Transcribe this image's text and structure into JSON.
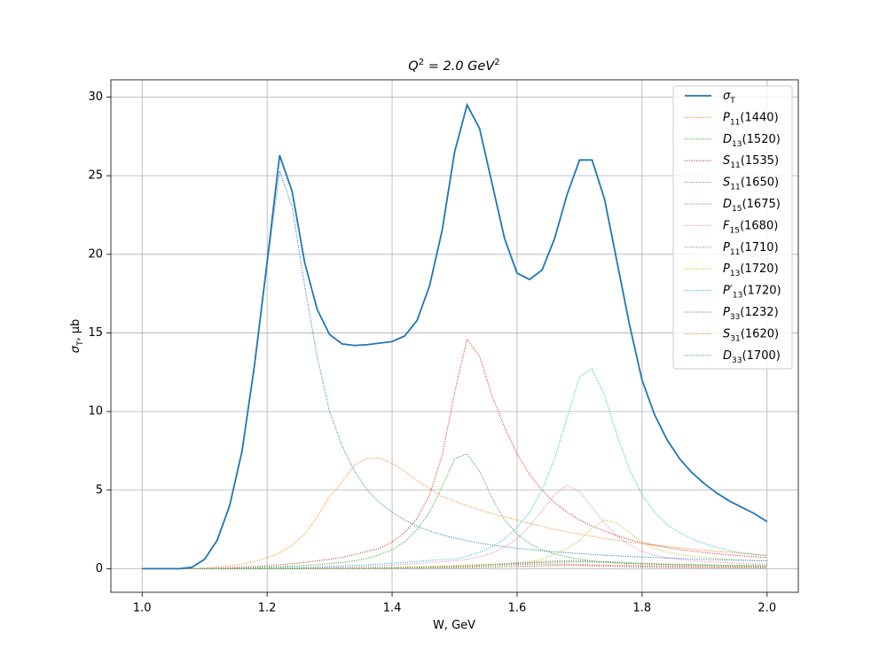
{
  "chart_data": {
    "type": "line",
    "title": "Q^2 = 2.0 GeV^2",
    "xlabel": "W, GeV",
    "ylabel": "σ_T, μb",
    "x": [
      1,
      1.02,
      1.04,
      1.06,
      1.08,
      1.1,
      1.12,
      1.14,
      1.16,
      1.18,
      1.2,
      1.22,
      1.24,
      1.26,
      1.28,
      1.3,
      1.32,
      1.34,
      1.36,
      1.38,
      1.4,
      1.42,
      1.44,
      1.46,
      1.48,
      1.5,
      1.52,
      1.54,
      1.56,
      1.58,
      1.6,
      1.62,
      1.64,
      1.66,
      1.68,
      1.7,
      1.72,
      1.74,
      1.76,
      1.78,
      1.8,
      1.82,
      1.84,
      1.86,
      1.88,
      1.9,
      1.92,
      1.94,
      1.96,
      1.98,
      2
    ],
    "xlim": [
      0.95,
      2.05
    ],
    "ylim": [
      -1.5,
      31.1
    ],
    "xticks": [
      {
        "value": 1,
        "label": "1.0"
      },
      1.2,
      1.4,
      1.6,
      1.8,
      {
        "value": 2,
        "label": "2.0"
      }
    ],
    "yticks": [
      0,
      5,
      10,
      15,
      20,
      25,
      30
    ],
    "grid": true,
    "legend": "upper right",
    "series": [
      {
        "name": "σ_T",
        "color": "#1f77b4",
        "style": "solid",
        "values": [
          0,
          0,
          0,
          0,
          0.1,
          0.6,
          1.8,
          4,
          7.5,
          13,
          19.5,
          26.3,
          24,
          19.5,
          16.5,
          14.9,
          14.3,
          14.2,
          14.25,
          14.35,
          14.45,
          14.8,
          15.8,
          18,
          21.5,
          26.5,
          29.5,
          28,
          24.5,
          21,
          18.8,
          18.4,
          19,
          21,
          23.8,
          26,
          26,
          23.5,
          19.5,
          15.5,
          12,
          9.8,
          8.2,
          7,
          6.1,
          5.4,
          4.8,
          4.3,
          3.9,
          3.5,
          3.0
        ]
      },
      {
        "name": "P_{11}(1440)",
        "color": "#ff7f0e",
        "style": "dotted",
        "values": [
          0,
          0,
          0,
          0,
          0.02,
          0.05,
          0.1,
          0.18,
          0.3,
          0.45,
          0.7,
          1.0,
          1.5,
          2.2,
          3.3,
          4.6,
          5.5,
          6.6,
          7.0,
          7.05,
          6.7,
          6.2,
          5.6,
          5.1,
          4.6,
          4.3,
          4.0,
          3.75,
          3.5,
          3.3,
          3.1,
          2.9,
          2.7,
          2.5,
          2.35,
          2.2,
          2.05,
          1.92,
          1.8,
          1.7,
          1.6,
          1.5,
          1.42,
          1.33,
          1.25,
          1.18,
          1.11,
          1.05,
          0.98,
          0.92,
          0.87
        ]
      },
      {
        "name": "D_{13}(1520)",
        "color": "#2ca02c",
        "style": "dotted",
        "values": [
          0,
          0,
          0,
          0,
          0,
          0.01,
          0.02,
          0.03,
          0.05,
          0.07,
          0.1,
          0.13,
          0.17,
          0.21,
          0.26,
          0.32,
          0.4,
          0.5,
          0.65,
          0.9,
          1.2,
          1.7,
          2.5,
          3.6,
          5.2,
          7.0,
          7.3,
          6.2,
          4.5,
          3.1,
          2.2,
          1.6,
          1.2,
          0.95,
          0.75,
          0.6,
          0.5,
          0.43,
          0.38,
          0.34,
          0.31,
          0.29,
          0.27,
          0.25,
          0.24,
          0.23,
          0.22,
          0.21,
          0.2,
          0.2,
          0.19
        ]
      },
      {
        "name": "S_{11}(1535)",
        "color": "#d62728",
        "style": "dotted",
        "values": [
          0,
          0,
          0,
          0,
          0.01,
          0.02,
          0.04,
          0.07,
          0.1,
          0.14,
          0.19,
          0.25,
          0.32,
          0.4,
          0.5,
          0.6,
          0.72,
          0.9,
          1.1,
          1.3,
          1.7,
          2.3,
          3.2,
          4.7,
          7.2,
          11.2,
          14.6,
          13.5,
          11,
          9,
          7.3,
          6,
          5,
          4.2,
          3.6,
          3.1,
          2.7,
          2.4,
          2.1,
          1.85,
          1.65,
          1.5,
          1.35,
          1.22,
          1.12,
          1.03,
          0.95,
          0.88,
          0.82,
          0.76,
          0.7
        ]
      },
      {
        "name": "S_{11}(1650)",
        "color": "#9467bd",
        "style": "dotted",
        "values": [
          0,
          0,
          0,
          0,
          0,
          0,
          0,
          0,
          0,
          0,
          0.01,
          0.01,
          0.01,
          0.02,
          0.02,
          0.02,
          0.03,
          0.03,
          0.04,
          0.04,
          0.05,
          0.06,
          0.07,
          0.08,
          0.1,
          0.12,
          0.14,
          0.17,
          0.2,
          0.23,
          0.26,
          0.28,
          0.29,
          0.3,
          0.29,
          0.27,
          0.25,
          0.23,
          0.21,
          0.19,
          0.17,
          0.16,
          0.15,
          0.14,
          0.13,
          0.12,
          0.11,
          0.1,
          0.1,
          0.09,
          0.09
        ]
      },
      {
        "name": "D_{15}(1675)",
        "color": "#8c564b",
        "style": "dotted",
        "values": [
          0,
          0,
          0,
          0,
          0,
          0,
          0,
          0,
          0,
          0,
          0,
          0,
          0,
          0,
          0.01,
          0.01,
          0.01,
          0.01,
          0.02,
          0.02,
          0.02,
          0.03,
          0.03,
          0.04,
          0.05,
          0.06,
          0.07,
          0.08,
          0.1,
          0.12,
          0.14,
          0.16,
          0.18,
          0.2,
          0.21,
          0.2,
          0.18,
          0.16,
          0.14,
          0.12,
          0.11,
          0.1,
          0.09,
          0.08,
          0.07,
          0.07,
          0.06,
          0.06,
          0.05,
          0.05,
          0.05
        ]
      },
      {
        "name": "F_{15}(1680)",
        "color": "#e377c2",
        "style": "dotted",
        "values": [
          0,
          0,
          0,
          0,
          0,
          0,
          0.01,
          0.01,
          0.02,
          0.02,
          0.03,
          0.04,
          0.05,
          0.06,
          0.08,
          0.1,
          0.12,
          0.14,
          0.17,
          0.2,
          0.24,
          0.28,
          0.33,
          0.4,
          0.45,
          0.5,
          0.6,
          0.75,
          1.0,
          1.4,
          1.9,
          2.7,
          3.7,
          4.7,
          5.3,
          4.9,
          3.9,
          2.9,
          2.1,
          1.5,
          1.1,
          0.85,
          0.7,
          0.6,
          0.52,
          0.46,
          0.41,
          0.37,
          0.34,
          0.31,
          0.29
        ]
      },
      {
        "name": "P_{11}(1710)",
        "color": "#7f7f7f",
        "style": "dotted",
        "values": [
          0,
          0,
          0,
          0,
          0,
          0,
          0,
          0,
          0,
          0,
          0.01,
          0.01,
          0.01,
          0.02,
          0.02,
          0.03,
          0.03,
          0.04,
          0.05,
          0.06,
          0.07,
          0.08,
          0.1,
          0.12,
          0.14,
          0.17,
          0.2,
          0.24,
          0.28,
          0.33,
          0.38,
          0.42,
          0.46,
          0.49,
          0.5,
          0.5,
          0.48,
          0.45,
          0.42,
          0.38,
          0.35,
          0.32,
          0.3,
          0.28,
          0.26,
          0.24,
          0.22,
          0.21,
          0.2,
          0.19,
          0.18
        ]
      },
      {
        "name": "P_{13}(1720)",
        "color": "#bcbd22",
        "style": "dotted",
        "values": [
          0,
          0,
          0,
          0,
          0,
          0,
          0,
          0,
          0,
          0,
          0.01,
          0.01,
          0.01,
          0.02,
          0.02,
          0.02,
          0.03,
          0.03,
          0.04,
          0.04,
          0.05,
          0.06,
          0.07,
          0.08,
          0.09,
          0.11,
          0.13,
          0.16,
          0.2,
          0.25,
          0.3,
          0.45,
          0.6,
          0.9,
          1.3,
          1.8,
          2.6,
          3.1,
          2.9,
          2.3,
          1.7,
          1.3,
          1.05,
          0.9,
          0.8,
          0.72,
          0.65,
          0.6,
          0.56,
          0.52,
          0.5
        ]
      },
      {
        "name": "P′_{13}(1720)",
        "color": "#17becf",
        "style": "dotted",
        "values": [
          0,
          0,
          0,
          0,
          0,
          0,
          0.01,
          0.02,
          0.03,
          0.04,
          0.05,
          0.06,
          0.08,
          0.1,
          0.12,
          0.15,
          0.18,
          0.21,
          0.25,
          0.3,
          0.35,
          0.4,
          0.46,
          0.53,
          0.58,
          0.6,
          0.8,
          1.05,
          1.4,
          1.9,
          2.6,
          3.6,
          5.0,
          7.0,
          9.6,
          12.2,
          12.7,
          11,
          8.5,
          6.3,
          4.7,
          3.6,
          2.8,
          2.3,
          1.9,
          1.6,
          1.35,
          1.15,
          1.0,
          0.9,
          0.8
        ]
      },
      {
        "name": "P_{33}(1232)",
        "color": "#1f77b4",
        "style": "dotted",
        "values": [
          0,
          0,
          0,
          0,
          0.1,
          0.6,
          1.8,
          4,
          7.5,
          13,
          19.3,
          25.3,
          23,
          18,
          13.5,
          10,
          7.8,
          6.2,
          5.0,
          4.2,
          3.6,
          3.1,
          2.7,
          2.4,
          2.15,
          1.95,
          1.78,
          1.63,
          1.5,
          1.4,
          1.3,
          1.22,
          1.15,
          1.08,
          1.02,
          0.96,
          0.91,
          0.86,
          0.82,
          0.78,
          0.74,
          0.71,
          0.68,
          0.65,
          0.62,
          0.6,
          0.57,
          0.55,
          0.53,
          0.51,
          0.5
        ]
      },
      {
        "name": "S_{31}(1620)",
        "color": "#ff7f0e",
        "style": "dotted",
        "values": [
          0,
          0,
          0,
          0,
          0,
          0,
          0,
          0,
          0,
          0.01,
          0.01,
          0.01,
          0.02,
          0.02,
          0.03,
          0.03,
          0.04,
          0.05,
          0.06,
          0.07,
          0.08,
          0.1,
          0.12,
          0.14,
          0.17,
          0.2,
          0.23,
          0.26,
          0.28,
          0.3,
          0.31,
          0.31,
          0.3,
          0.29,
          0.28,
          0.26,
          0.25,
          0.23,
          0.22,
          0.21,
          0.2,
          0.19,
          0.18,
          0.17,
          0.16,
          0.15,
          0.14,
          0.14,
          0.13,
          0.12,
          0.12
        ]
      },
      {
        "name": "D_{33}(1700)",
        "color": "#2ca02c",
        "style": "dotted",
        "values": [
          0,
          0,
          0,
          0,
          0,
          0,
          0,
          0,
          0,
          0,
          0.01,
          0.01,
          0.01,
          0.02,
          0.02,
          0.03,
          0.03,
          0.04,
          0.05,
          0.06,
          0.07,
          0.08,
          0.09,
          0.11,
          0.13,
          0.15,
          0.18,
          0.21,
          0.25,
          0.29,
          0.33,
          0.37,
          0.4,
          0.42,
          0.43,
          0.43,
          0.42,
          0.4,
          0.37,
          0.34,
          0.31,
          0.29,
          0.27,
          0.25,
          0.23,
          0.22,
          0.2,
          0.19,
          0.18,
          0.17,
          0.16
        ]
      }
    ]
  }
}
